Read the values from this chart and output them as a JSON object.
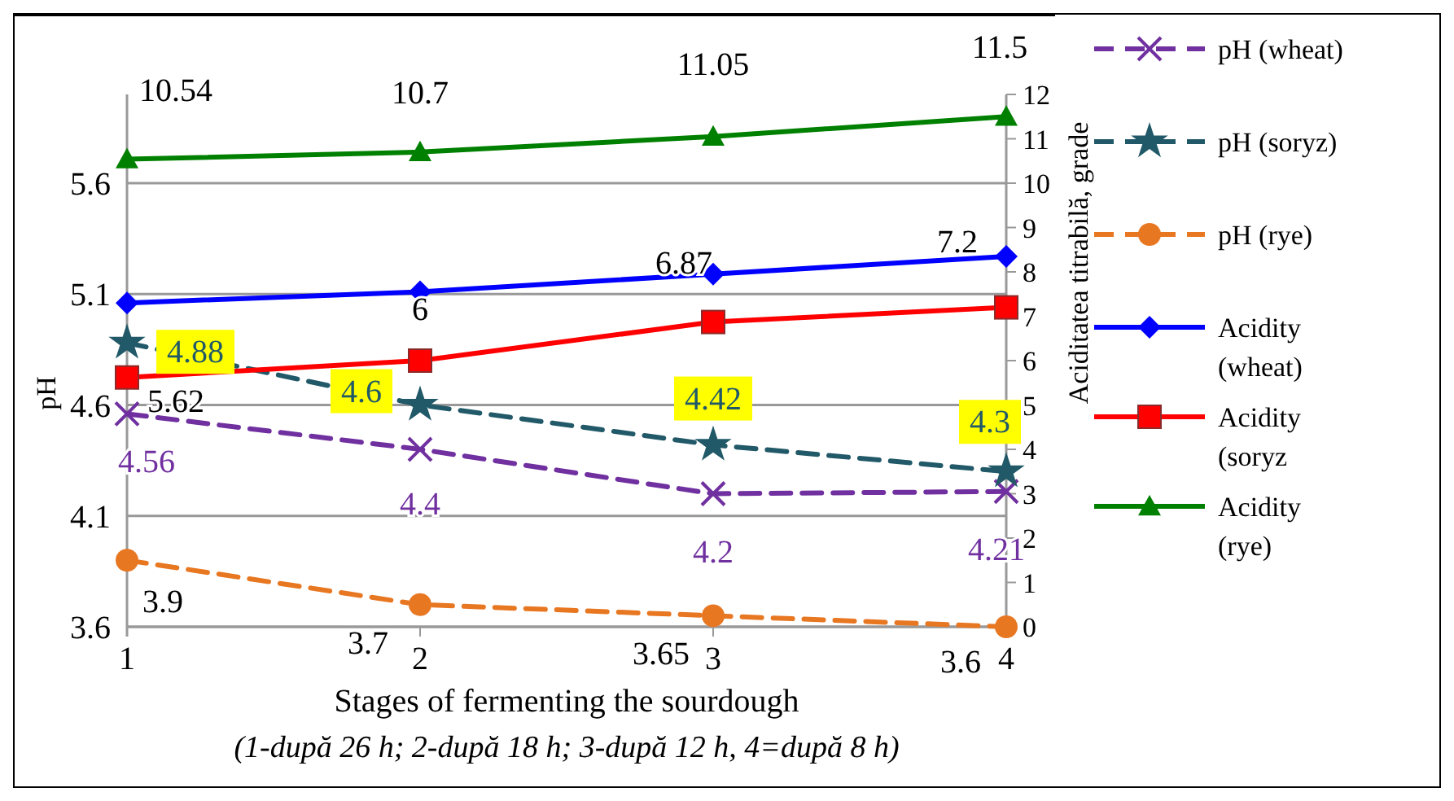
{
  "chart_data": {
    "type": "line",
    "xlabel": "Stages of fermenting the sourdough",
    "ylabel": "pH",
    "y2label": "Aciditatea titrabilă, grade",
    "annotations": [
      "(1-după 26 h; 2-după 18 h; 3-după 12 h, 4=după 8 h)"
    ],
    "x": [
      1,
      2,
      3,
      4
    ],
    "xlim": [
      1,
      4
    ],
    "xticks": [
      1,
      2,
      3,
      4
    ],
    "ylim": [
      3.6,
      6.0
    ],
    "yticks": [
      3.6,
      4.1,
      4.6,
      5.1,
      5.6
    ],
    "y2lim": [
      0,
      12
    ],
    "y2ticks": [
      0,
      1,
      2,
      3,
      4,
      5,
      6,
      7,
      8,
      9,
      10,
      11,
      12
    ],
    "grid": "y",
    "legend": "right",
    "series": [
      {
        "name": "pH (wheat)",
        "color": "#7030a0",
        "values": [
          4.56,
          4.4,
          4.2,
          4.21
        ],
        "marker": "cross",
        "line_style": "dashed",
        "value_labels": [
          "4.56",
          "4.4",
          "4.2",
          "4.21"
        ]
      },
      {
        "name": "pH (soryz)",
        "color": "#215968",
        "values": [
          4.88,
          4.6,
          4.42,
          4.3
        ],
        "marker": "star",
        "line_style": "dashed",
        "value_labels": [
          "4.88",
          "4.6",
          "4.42",
          "4.3"
        ]
      },
      {
        "name": "pH (rye)",
        "color": "#e87722",
        "values": [
          3.9,
          3.7,
          3.65,
          3.6
        ],
        "marker": "circle",
        "line_style": "dashed",
        "value_labels": [
          "3.9",
          "3.7",
          "3.65",
          "3.6"
        ]
      },
      {
        "name": "Acidity (wheat)",
        "color": "#0000ff",
        "values": [
          7.3,
          7.55,
          7.95,
          8.35
        ],
        "marker": "diamond",
        "line_style": "solid",
        "axis": "y2"
      },
      {
        "name": "Acidity (soryz",
        "color": "#ff0000",
        "values": [
          5.62,
          6,
          6.87,
          7.2
        ],
        "marker": "square",
        "line_style": "solid",
        "axis": "y2",
        "value_labels": [
          "5.62",
          "6",
          "6.87",
          "7.2"
        ]
      },
      {
        "name": "Acidity (rye)",
        "color": "#008000",
        "values": [
          10.54,
          10.7,
          11.05,
          11.5
        ],
        "marker": "triangle",
        "line_style": "solid",
        "axis": "y2",
        "value_labels": [
          "10.54",
          "10.7",
          "11.05",
          "11.5"
        ]
      }
    ]
  }
}
